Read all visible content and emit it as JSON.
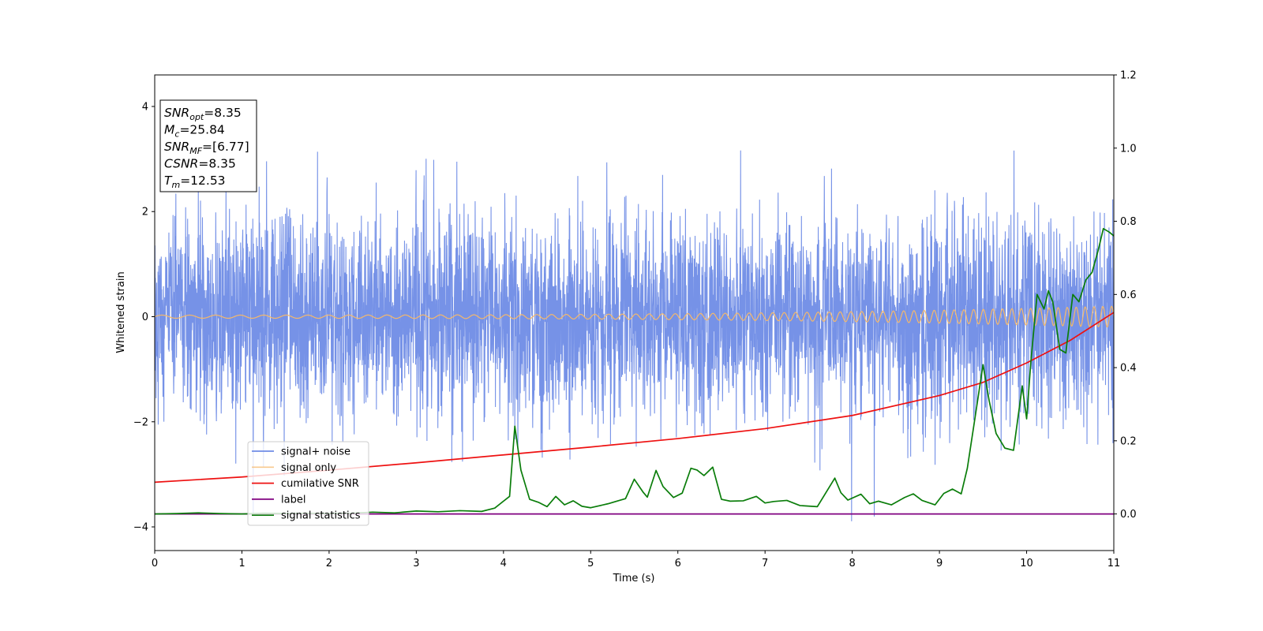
{
  "chart_data": {
    "type": "line",
    "xlabel": "Time (s)",
    "ylabel_left": "Whitened strain",
    "ylabel_right": "",
    "xlim": [
      0,
      11
    ],
    "ylim_left": [
      -4.45,
      4.6
    ],
    "ylim_right": [
      -0.1,
      1.2
    ],
    "x_ticks": [
      0,
      1,
      2,
      3,
      4,
      5,
      6,
      7,
      8,
      9,
      10,
      11
    ],
    "y_ticks_left": [
      -4,
      -2,
      0,
      2,
      4
    ],
    "y_ticks_right": [
      0.0,
      0.2,
      0.4,
      0.6,
      0.8,
      1.0,
      1.2
    ],
    "y_ticks_right_labels": [
      "0.0",
      "0.2",
      "0.4",
      "0.6",
      "0.8",
      "1.0",
      "1.2"
    ],
    "legend_placement": "lower-left",
    "grid": false,
    "annotation": {
      "lines": [
        {
          "base": "SNR",
          "sub": "opt",
          "rest": "=8.35"
        },
        {
          "base": "M",
          "sub": "c",
          "rest": "=25.84"
        },
        {
          "base": "SNR",
          "sub": "MF",
          "rest": "=[6.77]"
        },
        {
          "base": "CSNR",
          "sub": "",
          "rest": "=8.35"
        },
        {
          "base": "T",
          "sub": "m",
          "rest": "=12.53"
        }
      ]
    },
    "series": [
      {
        "name": "signal+ noise",
        "axis": "left",
        "color": "#6f8ce6",
        "kind": "noise",
        "amplitude_sd": 0.95,
        "peak_range": [
          -4.05,
          4.2
        ]
      },
      {
        "name": "signal only",
        "axis": "left",
        "color": "#f5b86a",
        "kind": "chirp",
        "amplitude_start": 0.03,
        "amplitude_end": 0.2,
        "freq_start_hz": 3,
        "freq_end_hz": 10
      },
      {
        "name": "cumilative SNR",
        "axis": "left",
        "color": "#ee1111",
        "x": [
          0,
          1,
          2,
          3,
          4,
          5,
          6,
          7,
          8,
          9,
          9.5,
          10,
          10.5,
          11
        ],
        "y": [
          -3.15,
          -3.05,
          -2.92,
          -2.78,
          -2.63,
          -2.48,
          -2.32,
          -2.13,
          -1.88,
          -1.5,
          -1.25,
          -0.88,
          -0.45,
          0.08
        ]
      },
      {
        "name": "label",
        "axis": "right",
        "color": "#800080",
        "x": [
          0,
          11
        ],
        "y": [
          0.0,
          0.0
        ]
      },
      {
        "name": "signal statistics",
        "axis": "right",
        "color": "#0a7d0a",
        "x": [
          0,
          0.25,
          0.5,
          0.75,
          1.0,
          1.25,
          1.5,
          1.75,
          2.0,
          2.25,
          2.5,
          2.75,
          3.0,
          3.25,
          3.5,
          3.75,
          3.9,
          4.0,
          4.07,
          4.13,
          4.2,
          4.3,
          4.4,
          4.5,
          4.6,
          4.7,
          4.8,
          4.9,
          5.0,
          5.2,
          5.4,
          5.5,
          5.6,
          5.65,
          5.75,
          5.83,
          5.95,
          6.05,
          6.15,
          6.22,
          6.3,
          6.4,
          6.5,
          6.6,
          6.75,
          6.9,
          7.0,
          7.1,
          7.25,
          7.4,
          7.6,
          7.8,
          7.87,
          7.95,
          8.1,
          8.2,
          8.3,
          8.45,
          8.6,
          8.7,
          8.8,
          8.95,
          9.05,
          9.15,
          9.25,
          9.32,
          9.4,
          9.5,
          9.57,
          9.65,
          9.75,
          9.85,
          9.95,
          10.0,
          10.05,
          10.12,
          10.2,
          10.25,
          10.3,
          10.38,
          10.45,
          10.53,
          10.6,
          10.68,
          10.75,
          10.82,
          10.88,
          10.95,
          11.0
        ],
        "y": [
          0.0,
          0.001,
          0.003,
          0.001,
          0.0,
          0.002,
          0.001,
          0.002,
          0.001,
          0.002,
          0.005,
          0.003,
          0.008,
          0.006,
          0.009,
          0.007,
          0.016,
          0.035,
          0.048,
          0.24,
          0.12,
          0.04,
          0.032,
          0.02,
          0.048,
          0.025,
          0.036,
          0.021,
          0.017,
          0.028,
          0.042,
          0.095,
          0.06,
          0.046,
          0.119,
          0.075,
          0.045,
          0.057,
          0.125,
          0.12,
          0.105,
          0.128,
          0.04,
          0.035,
          0.036,
          0.048,
          0.03,
          0.034,
          0.037,
          0.023,
          0.02,
          0.098,
          0.058,
          0.038,
          0.054,
          0.028,
          0.035,
          0.025,
          0.045,
          0.055,
          0.037,
          0.025,
          0.056,
          0.068,
          0.055,
          0.125,
          0.25,
          0.408,
          0.31,
          0.22,
          0.18,
          0.174,
          0.35,
          0.26,
          0.42,
          0.6,
          0.56,
          0.61,
          0.58,
          0.45,
          0.44,
          0.6,
          0.58,
          0.64,
          0.66,
          0.72,
          0.78,
          0.77,
          0.76
        ]
      }
    ]
  }
}
